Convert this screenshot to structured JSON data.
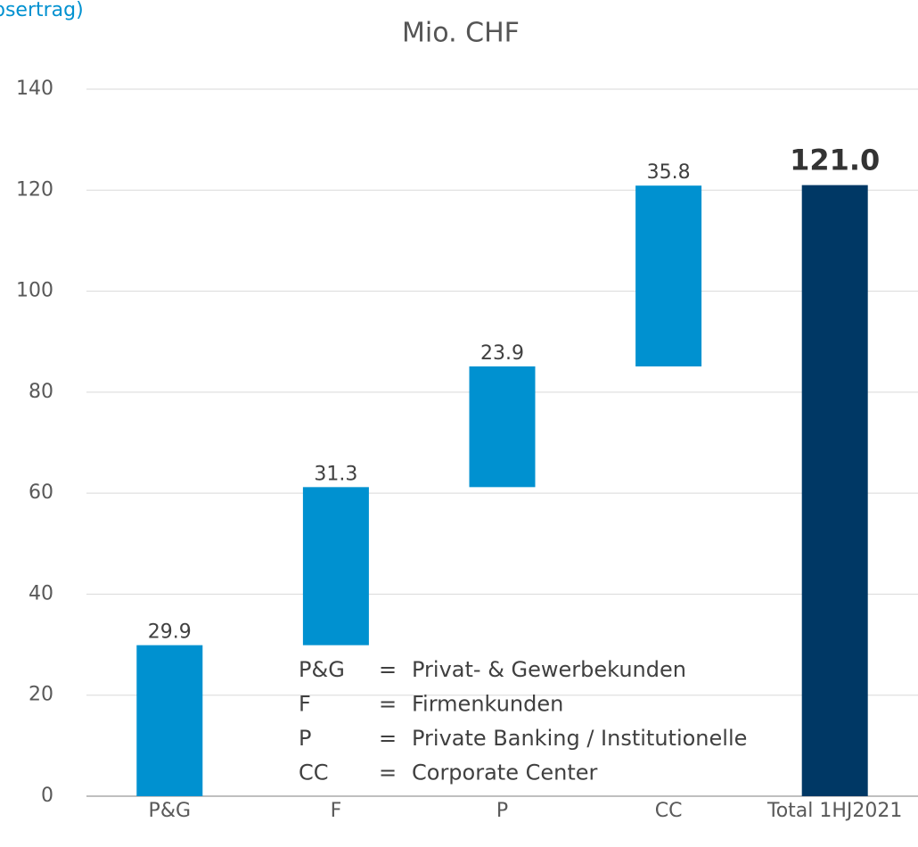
{
  "chart_data": {
    "type": "waterfall",
    "title": "bsertrag)",
    "subtitle": "Mio. CHF",
    "categories": [
      "P&G",
      "F",
      "P",
      "CC",
      "Total 1HJ2021"
    ],
    "values": [
      29.9,
      31.3,
      23.9,
      35.8,
      121.0
    ],
    "value_labels": [
      "29.9",
      "31.3",
      "23.9",
      "35.8",
      "121.0"
    ],
    "is_total": [
      false,
      false,
      false,
      false,
      true
    ],
    "colors": {
      "increase": "#0091d0",
      "total": "#003865"
    },
    "ylim": [
      0,
      140
    ],
    "yticks": [
      0,
      20,
      40,
      60,
      80,
      100,
      120,
      140
    ],
    "grid": true,
    "annotations": [
      {
        "key": "P&G",
        "sep": "=",
        "text": "Privat- & Gewerbekunden"
      },
      {
        "key": "F",
        "sep": "=",
        "text": "Firmenkunden"
      },
      {
        "key": "P",
        "sep": "=",
        "text": "Private Banking / Institutionelle"
      },
      {
        "key": "CC",
        "sep": "=",
        "text": "Corporate Center"
      }
    ]
  }
}
